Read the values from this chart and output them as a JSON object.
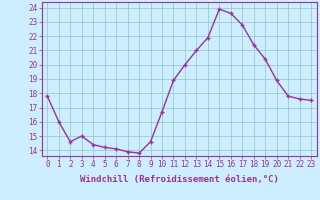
{
  "x": [
    0,
    1,
    2,
    3,
    4,
    5,
    6,
    7,
    8,
    9,
    10,
    11,
    12,
    13,
    14,
    15,
    16,
    17,
    18,
    19,
    20,
    21,
    22,
    23
  ],
  "y": [
    17.8,
    16.0,
    14.6,
    15.0,
    14.4,
    14.2,
    14.1,
    13.9,
    13.8,
    14.6,
    16.7,
    18.9,
    20.0,
    21.0,
    21.9,
    23.9,
    23.6,
    22.8,
    21.4,
    20.4,
    18.9,
    17.8,
    17.6,
    17.5
  ],
  "line_color": "#993399",
  "marker": "+",
  "marker_size": 3.5,
  "linewidth": 1.0,
  "xlabel": "Windchill (Refroidissement éolien,°C)",
  "xlabel_fontsize": 6.5,
  "yticks": [
    14,
    15,
    16,
    17,
    18,
    19,
    20,
    21,
    22,
    23,
    24
  ],
  "xticks": [
    0,
    1,
    2,
    3,
    4,
    5,
    6,
    7,
    8,
    9,
    10,
    11,
    12,
    13,
    14,
    15,
    16,
    17,
    18,
    19,
    20,
    21,
    22,
    23
  ],
  "xlim": [
    -0.5,
    23.5
  ],
  "ylim": [
    13.6,
    24.4
  ],
  "background_color": "#cceeff",
  "grid_color": "#99cccc",
  "tick_color": "#993399",
  "tick_fontsize": 5.5,
  "spine_color": "#993399"
}
